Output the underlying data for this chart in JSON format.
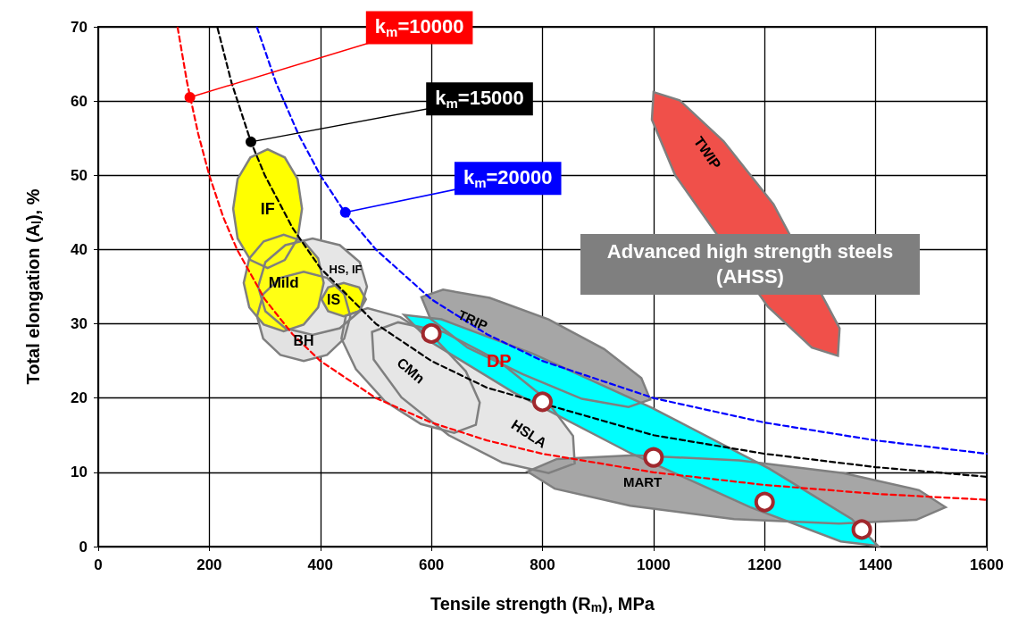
{
  "chart_data": {
    "type": "line",
    "xlabel": "Tensile strength (R$_{m}$), MPa",
    "ylabel": "Total elongation (A$_{l}$), %",
    "xlim": [
      0,
      1600
    ],
    "xticks": [
      0,
      200,
      400,
      600,
      800,
      1000,
      1200,
      1400,
      1600
    ],
    "ylim": [
      0,
      70
    ],
    "yticks": [
      0,
      10,
      20,
      30,
      40,
      50,
      60,
      70
    ],
    "grid": true,
    "legend": false,
    "series": [
      {
        "type": "area",
        "name": "HSLA",
        "color": "#e6e6e6",
        "x": [
          858,
          811,
          728,
          631,
          546,
          496,
          493,
          540,
          622,
          719,
          804,
          855
        ],
        "values": [
          11.2,
          9.9,
          11.3,
          15.0,
          20.1,
          25.2,
          28.9,
          30.2,
          28.9,
          25.1,
          20.0,
          14.9
        ]
      },
      {
        "type": "area",
        "name": "CMn",
        "color": "#e6e6e6",
        "x": [
          680,
          641,
          581,
          516,
          464,
          438,
          446,
          485,
          544,
          609,
          662,
          687
        ],
        "values": [
          16.4,
          15.3,
          16.5,
          19.6,
          23.9,
          28.0,
          31.1,
          32.1,
          30.9,
          27.8,
          23.6,
          19.4
        ]
      },
      {
        "type": "area",
        "name": "BH",
        "color": "#e2e2e2",
        "x": [
          454,
          443,
          412,
          370,
          328,
          297,
          286,
          297,
          328,
          370,
          412,
          443
        ],
        "values": [
          31,
          34,
          36.2,
          37,
          36.2,
          34,
          31,
          28,
          25.8,
          25,
          25.8,
          28
        ]
      },
      {
        "type": "area",
        "name": "HS, IF",
        "color": "#e6e6e6",
        "x": [
          484,
          471,
          435,
          386,
          337,
          301,
          288,
          301,
          337,
          386,
          435,
          471
        ],
        "values": [
          35,
          38.3,
          40.6,
          41.5,
          40.6,
          38.3,
          35,
          31.7,
          29.4,
          28.5,
          29.4,
          31.7
        ]
      },
      {
        "type": "area",
        "name": "IF",
        "color": "#ffff00",
        "x": [
          367,
          359,
          336,
          305,
          274,
          251,
          243,
          251,
          274,
          305,
          336,
          359
        ],
        "values": [
          45.5,
          49.5,
          52.4,
          53.5,
          52.4,
          49.5,
          45.5,
          41.5,
          38.6,
          37.5,
          38.6,
          41.5
        ]
      },
      {
        "type": "area",
        "name": "Mild",
        "color": "#ffff14",
        "x": [
          406,
          396,
          370,
          334,
          298,
          272,
          262,
          272,
          298,
          334,
          370,
          396
        ],
        "values": [
          35.5,
          38.8,
          41.1,
          42,
          41.1,
          38.8,
          35.5,
          32.2,
          29.9,
          29,
          29.9,
          32.2
        ]
      },
      {
        "type": "area",
        "name": "IS",
        "color": "#ffff00",
        "x": [
          482,
          470,
          442,
          414,
          402,
          414,
          442,
          470
        ],
        "values": [
          33.3,
          34.9,
          35.5,
          34.9,
          33.3,
          31.7,
          31,
          31.7
        ]
      },
      {
        "type": "area",
        "name": "TRIP",
        "color": "#a6a6a6",
        "x": [
          994,
          955,
          871,
          765,
          665,
          598,
          582,
          621,
          705,
          811,
          911,
          978
        ],
        "values": [
          19.8,
          18.8,
          19.9,
          23.2,
          26.8,
          30.7,
          33.6,
          34.6,
          33.5,
          30.6,
          26.6,
          22.7
        ]
      },
      {
        "type": "area",
        "name": "MART",
        "color": "#a6a6a6",
        "x": [
          1526,
          1473,
          1334,
          1145,
          958,
          822,
          773,
          826,
          965,
          1154,
          1342,
          1478
        ],
        "values": [
          5.3,
          3.6,
          3.1,
          3.7,
          5.5,
          7.8,
          10.1,
          11.8,
          12.3,
          11.6,
          9.9,
          7.6
        ]
      },
      {
        "type": "area",
        "name": "DP",
        "color": "#00ffff",
        "x": [
          1404,
          1337,
          1174,
          958,
          747,
          598,
          551,
          618,
          782,
          997,
          1208,
          1357
        ],
        "values": [
          0.1,
          0.7,
          5.3,
          12.6,
          20.8,
          27.6,
          31.2,
          30.6,
          26.0,
          18.7,
          10.5,
          3.7
        ]
      },
      {
        "type": "area",
        "name": "TWIP",
        "color": "#f0504a",
        "x": [
          1332,
          1285,
          1206,
          1116,
          1039,
          997,
          1000,
          1047,
          1126,
          1216,
          1292,
          1335
        ],
        "values": [
          25.7,
          26.8,
          32.3,
          null,
          50.0,
          57.5,
          61.2,
          60.1,
          54.6,
          46.1,
          null,
          29.4
        ]
      },
      {
        "color": "#ff0000",
        "line_style": "dashed",
        "x": [
          143,
          160,
          180,
          200,
          225,
          250,
          300,
          350,
          400,
          500,
          600,
          700,
          800,
          1000,
          1200,
          1400,
          1600
        ],
        "values": [
          69.9,
          62.5,
          55.6,
          50,
          44.4,
          40,
          33.3,
          28.6,
          25,
          20,
          16.7,
          14.3,
          12.5,
          10,
          8.3,
          7.1,
          6.3
        ]
      },
      {
        "color": "#000000",
        "line_style": "dashed",
        "x": [
          215,
          240,
          275,
          300,
          350,
          400,
          500,
          600,
          700,
          800,
          1000,
          1200,
          1400,
          1600
        ],
        "values": [
          69.8,
          62.5,
          54.5,
          50,
          42.9,
          37.5,
          30,
          25,
          21.4,
          null,
          15,
          12.5,
          10.7,
          9.4
        ]
      },
      {
        "color": "#0000ff",
        "line_style": "dashed",
        "x": [
          286,
          320,
          360,
          400,
          445,
          500,
          600,
          700,
          800,
          1000,
          1200,
          1400,
          1600
        ],
        "values": [
          69.9,
          62.5,
          55.6,
          50,
          44.9,
          40,
          33.3,
          28.6,
          25,
          20,
          16.7,
          14.3,
          12.5
        ]
      },
      {
        "type": "scatter",
        "color": "#a0282d",
        "x": [
          600,
          800,
          1000,
          1200,
          1375
        ],
        "values": [
          28.7,
          19.5,
          12,
          6,
          2.3
        ]
      }
    ],
    "annotations": [
      {
        "text": "k$_{m}$=10000",
        "x": 165,
        "y": 60.5
      },
      {
        "text": "k$_{m}$=15000",
        "x": 275,
        "y": 54.5
      },
      {
        "text": "k$_{m}$=20000",
        "x": 445,
        "y": 45
      },
      "Advanced high strength steels (AHSS)"
    ]
  }
}
